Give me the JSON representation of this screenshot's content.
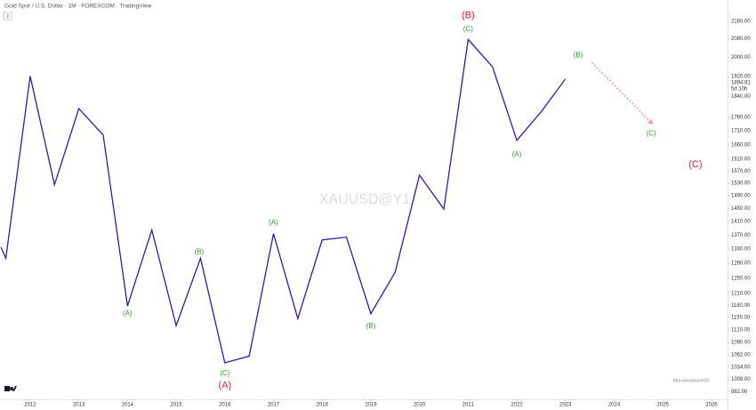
{
  "chart_data": {
    "type": "line",
    "title": "Gold Spot / U.S. Dollar · 1M · FOREXCOM · TradingView",
    "indicator_count": "2",
    "watermark": "XAUUSD@Y1",
    "author": "Mononoaware50",
    "log_scale": true,
    "x": [
      2011.4,
      2011.5,
      2012.0,
      2012.5,
      2013.0,
      2013.5,
      2014.0,
      2014.5,
      2015.0,
      2015.5,
      2016.0,
      2016.5,
      2017.0,
      2017.5,
      2018.0,
      2018.5,
      2019.0,
      2019.5,
      2020.0,
      2020.5,
      2021.0,
      2021.5,
      2022.0,
      2022.5,
      2023.0
    ],
    "series": [
      {
        "name": "XAUUSD",
        "color": "#2a1ea6",
        "values": [
          1335,
          1304,
          1921,
          1525,
          1793,
          1695,
          1178,
          1385,
          1130,
          1304,
          1044,
          1059,
          1374,
          1147,
          1356,
          1364,
          1159,
          1266,
          1556,
          1448,
          2077,
          1960,
          1676,
          1781,
          1910
        ]
      }
    ],
    "xlim": [
      2011.38,
      2026.33
    ],
    "ylim": [
      966,
      2259
    ],
    "xticks": [
      2012,
      2013,
      2014,
      2015,
      2016,
      2017,
      2018,
      2019,
      2020,
      2021,
      2022,
      2023,
      2024,
      2025,
      2026
    ],
    "yticks": [
      {
        "value": 2160,
        "label": "2160.00"
      },
      {
        "value": 2080,
        "label": "2080.00"
      },
      {
        "value": 2000,
        "label": "2000.00"
      },
      {
        "value": 1920,
        "label": "1920.00"
      },
      {
        "value": 1840,
        "label": "1840.00"
      },
      {
        "value": 1760,
        "label": "1760.00"
      },
      {
        "value": 1710,
        "label": "1710.00"
      },
      {
        "value": 1660,
        "label": "1660.00"
      },
      {
        "value": 1610,
        "label": "1610.00"
      },
      {
        "value": 1570,
        "label": "1570.00"
      },
      {
        "value": 1530,
        "label": "1530.00"
      },
      {
        "value": 1490,
        "label": "1490.00"
      },
      {
        "value": 1450,
        "label": "1450.00"
      },
      {
        "value": 1410,
        "label": "1410.00"
      },
      {
        "value": 1370,
        "label": "1370.00"
      },
      {
        "value": 1330,
        "label": "1330.00"
      },
      {
        "value": 1290,
        "label": "1290.00"
      },
      {
        "value": 1250,
        "label": "1250.00"
      },
      {
        "value": 1210,
        "label": "1210.00"
      },
      {
        "value": 1180,
        "label": "1180.00"
      },
      {
        "value": 1150,
        "label": "1150.00"
      },
      {
        "value": 1120,
        "label": "1120.00"
      },
      {
        "value": 1090,
        "label": "1090.00"
      },
      {
        "value": 1062,
        "label": "1062.00"
      },
      {
        "value": 1034,
        "label": "1034.00"
      },
      {
        "value": 1008,
        "label": "1008.00"
      },
      {
        "value": 982,
        "label": "982.00"
      }
    ],
    "last_price": {
      "value": 1894.91,
      "label": "1894.91",
      "countdown": "5d 10h"
    },
    "annotations": [
      {
        "text": "(B)",
        "x": 2021.0,
        "y": 2185,
        "color": "#e0202f",
        "size": "large"
      },
      {
        "text": "(C)",
        "x": 2021.0,
        "y": 2122,
        "color": "#2ea02e",
        "size": "small"
      },
      {
        "text": "(B)",
        "x": 2023.26,
        "y": 2007,
        "color": "#2ea02e",
        "size": "small"
      },
      {
        "text": "(A)",
        "x": 2022.0,
        "y": 1625,
        "color": "#2ea02e",
        "size": "small"
      },
      {
        "text": "(C)",
        "x": 2024.76,
        "y": 1700,
        "color": "#2ea02e",
        "size": "small"
      },
      {
        "text": "(C)",
        "x": 2025.67,
        "y": 1591,
        "color": "#e0202f",
        "size": "large"
      },
      {
        "text": "(A)",
        "x": 2014.0,
        "y": 1160,
        "color": "#2ea02e",
        "size": "small"
      },
      {
        "text": "(B)",
        "x": 2015.47,
        "y": 1322,
        "color": "#2ea02e",
        "size": "small"
      },
      {
        "text": "(C)",
        "x": 2016.0,
        "y": 1021,
        "color": "#2ea02e",
        "size": "small"
      },
      {
        "text": "(A)",
        "x": 2016.0,
        "y": 995,
        "color": "#e0202f",
        "size": "large"
      },
      {
        "text": "(A)",
        "x": 2017.0,
        "y": 1406,
        "color": "#2ea02e",
        "size": "small"
      },
      {
        "text": "(B)",
        "x": 2019.0,
        "y": 1128,
        "color": "#2ea02e",
        "size": "small"
      }
    ],
    "projection": {
      "x": [
        2023.54,
        2024.78
      ],
      "y": [
        1978,
        1737
      ],
      "color": "#e05050"
    }
  }
}
